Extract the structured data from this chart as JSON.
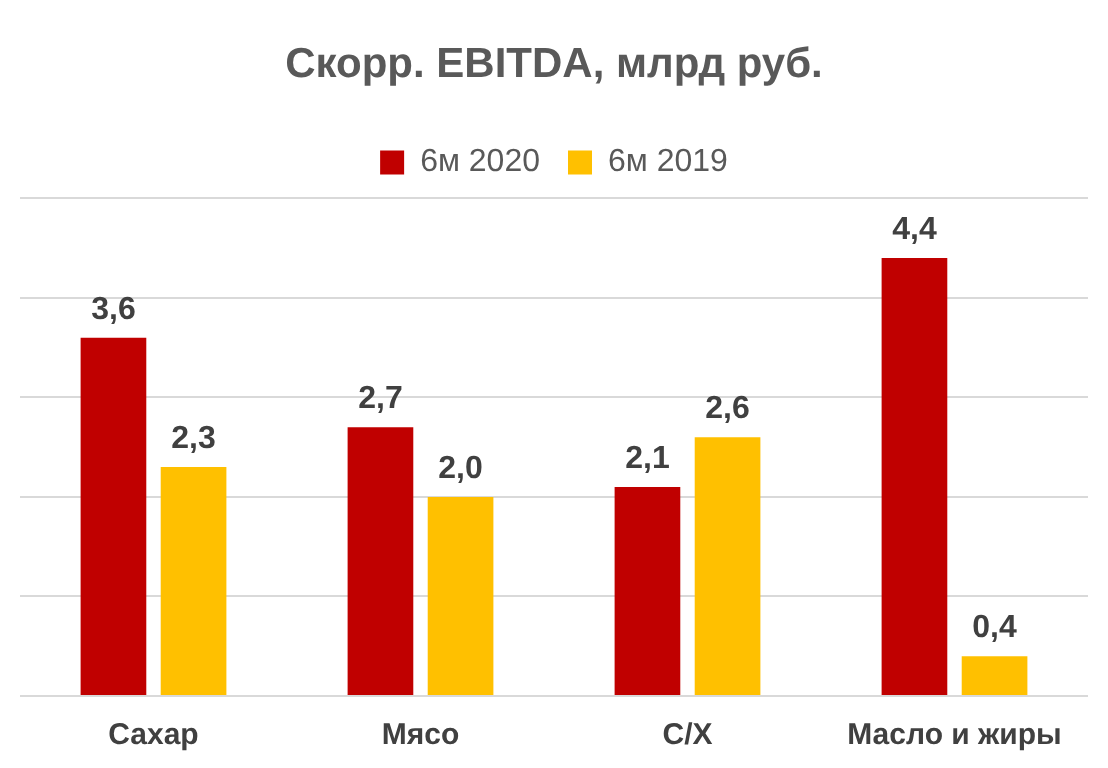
{
  "chart_data": {
    "type": "bar",
    "title": "Скорр. EBITDA, млрд руб.",
    "categories": [
      "Сахар",
      "Мясо",
      "С/Х",
      "Масло и жиры"
    ],
    "series": [
      {
        "name": "6м 2020",
        "color": "#c00000",
        "values": [
          3.6,
          2.7,
          2.1,
          4.4
        ],
        "value_labels": [
          "3,6",
          "2,7",
          "2,1",
          "4,4"
        ]
      },
      {
        "name": "6м 2019",
        "color": "#ffc000",
        "values": [
          2.3,
          2.0,
          2.6,
          0.4
        ],
        "value_labels": [
          "2,3",
          "2,0",
          "2,6",
          "0,4"
        ]
      }
    ],
    "ylim": [
      0,
      5
    ],
    "yticks": [
      {
        "value": 0,
        "label": null
      },
      {
        "value": 1,
        "label": null
      },
      {
        "value": 2,
        "label": null
      },
      {
        "value": 3,
        "label": null
      },
      {
        "value": 4,
        "label": null
      },
      {
        "value": 5,
        "label": null
      }
    ],
    "grid": "y",
    "legend": "top",
    "tick_labels": "x"
  }
}
